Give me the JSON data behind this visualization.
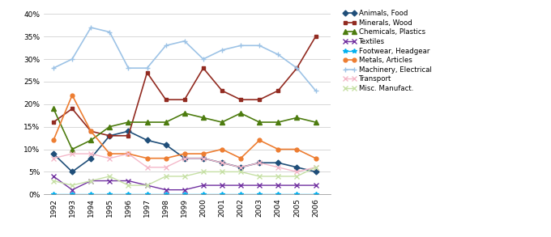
{
  "years": [
    1992,
    1993,
    1994,
    1995,
    1996,
    1997,
    1998,
    1999,
    2000,
    2001,
    2002,
    2003,
    2004,
    2005,
    2006
  ],
  "series": [
    {
      "name": "Animals, Food",
      "values": [
        9,
        5,
        8,
        13,
        14,
        12,
        11,
        8,
        8,
        7,
        6,
        7,
        7,
        6,
        5
      ],
      "color": "#1F4E79",
      "marker": "D",
      "markersize": 3.5,
      "linewidth": 1.2
    },
    {
      "name": "Minerals, Wood",
      "values": [
        16,
        19,
        14,
        13,
        13,
        27,
        21,
        21,
        28,
        23,
        21,
        21,
        23,
        28,
        35
      ],
      "color": "#922B21",
      "marker": "s",
      "markersize": 3.5,
      "linewidth": 1.2
    },
    {
      "name": "Chemicals, Plastics",
      "values": [
        19,
        10,
        12,
        15,
        16,
        16,
        16,
        18,
        17,
        16,
        18,
        16,
        16,
        17,
        16
      ],
      "color": "#4D7C0F",
      "marker": "^",
      "markersize": 4,
      "linewidth": 1.2
    },
    {
      "name": "Textiles",
      "values": [
        4,
        1,
        3,
        3,
        3,
        2,
        1,
        1,
        2,
        2,
        2,
        2,
        2,
        2,
        2
      ],
      "color": "#7030A0",
      "marker": "x",
      "markersize": 4,
      "linewidth": 1.0
    },
    {
      "name": "Footwear, Headgear",
      "values": [
        0,
        0,
        0,
        0,
        0,
        0,
        0,
        0,
        0,
        0,
        0,
        0,
        0,
        0,
        0
      ],
      "color": "#00B0F0",
      "marker": "*",
      "markersize": 4,
      "linewidth": 1.0
    },
    {
      "name": "Metals, Articles",
      "values": [
        12,
        22,
        14,
        9,
        9,
        8,
        8,
        9,
        9,
        10,
        8,
        12,
        10,
        10,
        8
      ],
      "color": "#ED7D31",
      "marker": "o",
      "markersize": 3.5,
      "linewidth": 1.2
    },
    {
      "name": "Machinery, Electrical",
      "values": [
        28,
        30,
        37,
        36,
        28,
        28,
        33,
        34,
        30,
        32,
        33,
        33,
        31,
        28,
        23
      ],
      "color": "#9DC3E6",
      "marker": "+",
      "markersize": 5,
      "linewidth": 1.2
    },
    {
      "name": "Transport",
      "values": [
        8,
        9,
        9,
        8,
        9,
        6,
        6,
        8,
        8,
        7,
        6,
        7,
        6,
        5,
        6
      ],
      "color": "#F4B8C9",
      "marker": "x",
      "markersize": 4,
      "linewidth": 1.0
    },
    {
      "name": "Misc. Manufact.",
      "values": [
        3,
        2,
        3,
        4,
        2,
        2,
        4,
        4,
        5,
        5,
        5,
        4,
        4,
        4,
        6
      ],
      "color": "#C6E0A5",
      "marker": "x",
      "markersize": 4,
      "linewidth": 1.0
    }
  ],
  "ylim": [
    0,
    41
  ],
  "yticks": [
    0,
    5,
    10,
    15,
    20,
    25,
    30,
    35,
    40
  ],
  "background_color": "#FFFFFF",
  "grid_color": "#C8C8C8",
  "legend_fontsize": 6.2,
  "tick_fontsize": 6.5,
  "figsize": [
    6.8,
    2.93
  ],
  "dpi": 100
}
